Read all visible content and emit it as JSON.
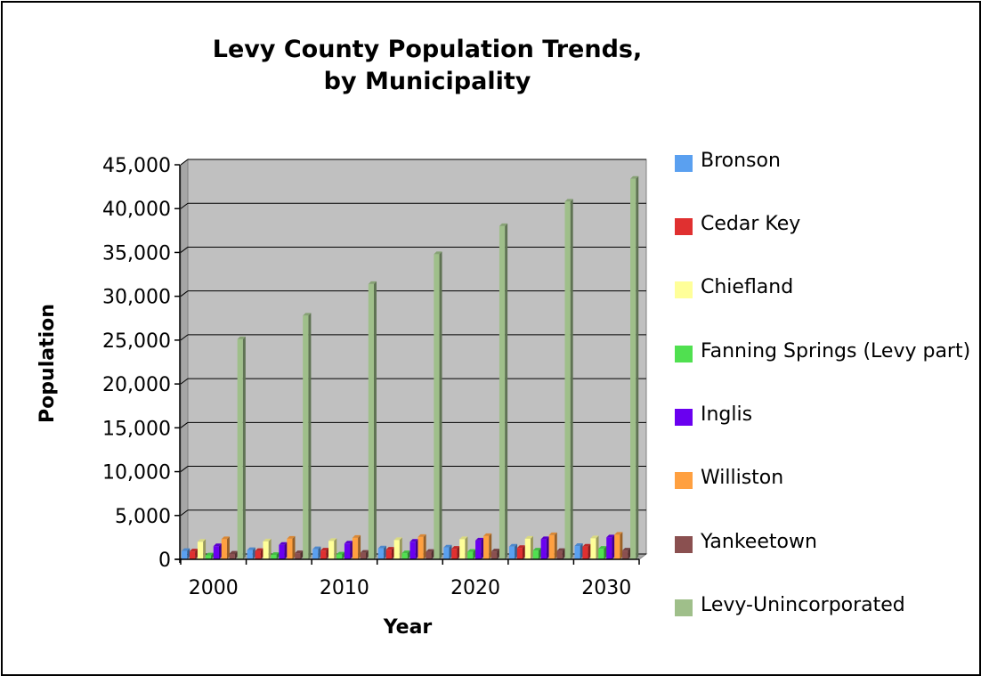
{
  "chart_data": {
    "type": "bar",
    "title_lines": [
      "Levy County Population Trends,",
      "by Municipality"
    ],
    "xlabel": "Year",
    "ylabel": "Population",
    "ylim": [
      0,
      45000
    ],
    "yticks": [
      "0",
      "5,000",
      "10,000",
      "15,000",
      "20,000",
      "25,000",
      "30,000",
      "35,000",
      "40,000",
      "45,000"
    ],
    "ytick_values": [
      0,
      5000,
      10000,
      15000,
      20000,
      25000,
      30000,
      35000,
      40000,
      45000
    ],
    "categories": [
      "2000",
      "2005",
      "2010",
      "2015",
      "2020",
      "2025",
      "2030"
    ],
    "category_labels_shown": [
      "2000",
      "",
      "2010",
      "",
      "2020",
      "",
      "2030"
    ],
    "grid": true,
    "legend_position": "right",
    "series": [
      {
        "name": "Bronson",
        "color": "#5aa0f0",
        "values": [
          950,
          1050,
          1150,
          1250,
          1350,
          1450,
          1520
        ]
      },
      {
        "name": "Cedar Key",
        "color": "#e03030",
        "values": [
          900,
          950,
          1000,
          1100,
          1200,
          1300,
          1450
        ]
      },
      {
        "name": "Chiefland",
        "color": "#ffff99",
        "values": [
          2000,
          2050,
          2100,
          2200,
          2300,
          2350,
          2400
        ]
      },
      {
        "name": "Fanning Springs (Levy part)",
        "color": "#50e050",
        "values": [
          450,
          500,
          550,
          700,
          850,
          1000,
          1200
        ]
      },
      {
        "name": "Inglis",
        "color": "#6a00f0",
        "values": [
          1500,
          1650,
          1800,
          2000,
          2150,
          2300,
          2500
        ]
      },
      {
        "name": "Williston",
        "color": "#ffa040",
        "values": [
          2300,
          2350,
          2450,
          2550,
          2650,
          2750,
          2800
        ]
      },
      {
        "name": "Yankeetown",
        "color": "#8a5050",
        "values": [
          650,
          700,
          750,
          850,
          900,
          950,
          1000
        ]
      },
      {
        "name": "Levy-Unincorporated",
        "color": "#9fbf8a",
        "values": [
          25100,
          27800,
          31400,
          34800,
          38000,
          40800,
          43400
        ]
      }
    ]
  }
}
